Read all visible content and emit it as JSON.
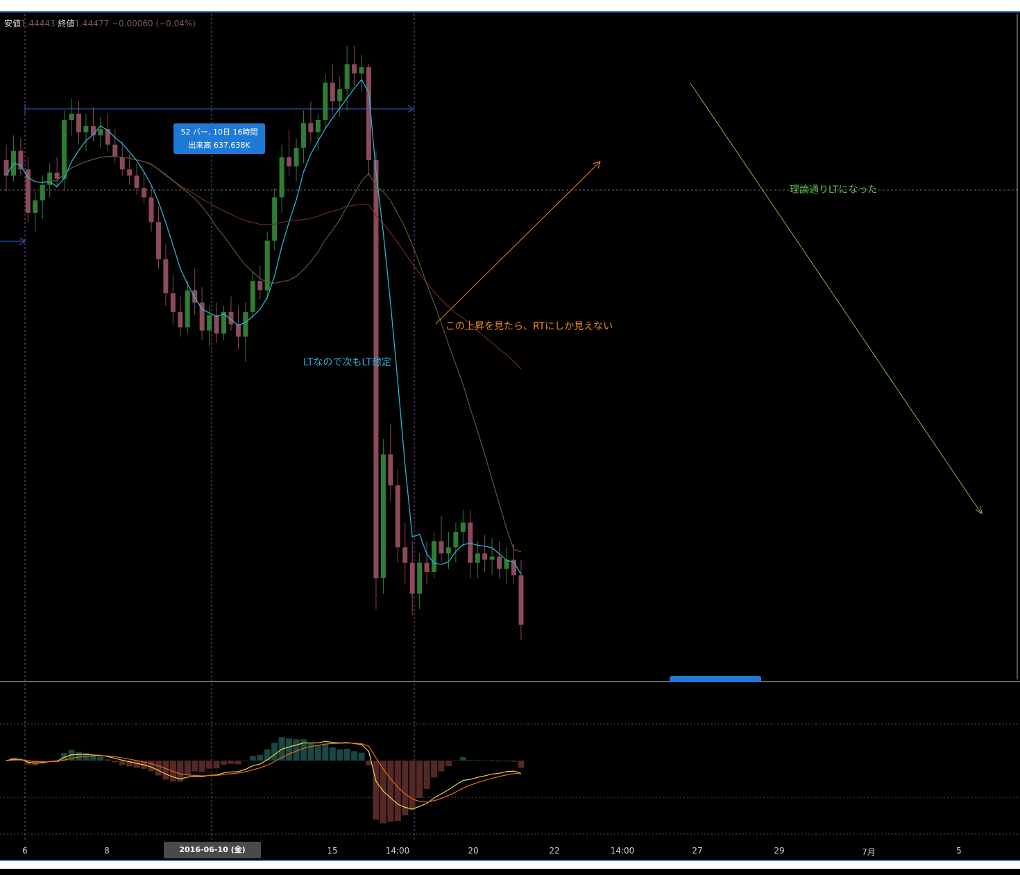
{
  "header": {
    "low_label": "安値",
    "low_value": "1.44443",
    "close_label": "終値",
    "close_value": "1.44477",
    "change": "−0.00060 (−0.04%)"
  },
  "measure_tag": {
    "line1": "52 バー, 10日 16時間",
    "line2": "出来高 637.638K"
  },
  "annotations": {
    "lt_expect": "LTなので次もLT想定",
    "rt_view": "この上昇を見たら、RTにしか見えない",
    "lt_result": "理論通りLTになった"
  },
  "x_axis": {
    "labels": [
      "6",
      "8",
      "15",
      "14:00",
      "20",
      "22",
      "14:00",
      "27",
      "29",
      "7月",
      "5"
    ],
    "crosshair_label": "2016-06-10 (金)　10:00"
  },
  "colors": {
    "up": "#2f7d32",
    "down": "#8c4a5a",
    "ma_fast": "#26b7d6",
    "ma_mid": "#5a5a32",
    "ma_slow": "#6a2a2a",
    "macd": "#e8d840",
    "signal": "#e86a1a",
    "lt_annotation": "#2ab0d8",
    "rt_annotation": "#ee8a20",
    "result_annotation": "#5fb84a"
  },
  "chart_data": {
    "type": "candlestick",
    "symbol_note": "",
    "candles": [
      [
        1.4475,
        1.448,
        1.4465,
        1.447
      ],
      [
        1.447,
        1.4483,
        1.4468,
        1.4478
      ],
      [
        1.4478,
        1.4482,
        1.447,
        1.4472
      ],
      [
        1.4472,
        1.4476,
        1.4455,
        1.4458
      ],
      [
        1.4458,
        1.4465,
        1.4452,
        1.4462
      ],
      [
        1.4462,
        1.447,
        1.4456,
        1.4467
      ],
      [
        1.4467,
        1.4474,
        1.4463,
        1.4471
      ],
      [
        1.4471,
        1.4476,
        1.4466,
        1.4469
      ],
      [
        1.4469,
        1.4491,
        1.4465,
        1.4488
      ],
      [
        1.4488,
        1.4495,
        1.4483,
        1.449
      ],
      [
        1.449,
        1.4494,
        1.448,
        1.4484
      ],
      [
        1.4484,
        1.449,
        1.4478,
        1.4486
      ],
      [
        1.4486,
        1.4492,
        1.4481,
        1.4483
      ],
      [
        1.4483,
        1.4489,
        1.4479,
        1.4485
      ],
      [
        1.4485,
        1.449,
        1.4478,
        1.448
      ],
      [
        1.448,
        1.4485,
        1.4474,
        1.4476
      ],
      [
        1.4476,
        1.4481,
        1.447,
        1.4472
      ],
      [
        1.4472,
        1.4477,
        1.4467,
        1.447
      ],
      [
        1.447,
        1.4474,
        1.4464,
        1.4466
      ],
      [
        1.4466,
        1.4471,
        1.4461,
        1.4463
      ],
      [
        1.4463,
        1.4467,
        1.4452,
        1.4455
      ],
      [
        1.4455,
        1.446,
        1.444,
        1.4443
      ],
      [
        1.4443,
        1.4448,
        1.4428,
        1.4432
      ],
      [
        1.4432,
        1.4438,
        1.4422,
        1.4426
      ],
      [
        1.4426,
        1.4431,
        1.4418,
        1.4421
      ],
      [
        1.4421,
        1.4436,
        1.4419,
        1.4433
      ],
      [
        1.4433,
        1.444,
        1.4425,
        1.4429
      ],
      [
        1.4429,
        1.4434,
        1.4417,
        1.442
      ],
      [
        1.442,
        1.4428,
        1.4415,
        1.4425
      ],
      [
        1.4425,
        1.4429,
        1.4416,
        1.4419
      ],
      [
        1.4419,
        1.4428,
        1.4417,
        1.4426
      ],
      [
        1.4426,
        1.4431,
        1.442,
        1.4422
      ],
      [
        1.4422,
        1.4428,
        1.4414,
        1.4418
      ],
      [
        1.4418,
        1.4429,
        1.441,
        1.4426
      ],
      [
        1.4426,
        1.4439,
        1.4424,
        1.4436
      ],
      [
        1.4436,
        1.4441,
        1.443,
        1.4433
      ],
      [
        1.4433,
        1.4452,
        1.443,
        1.4449
      ],
      [
        1.4449,
        1.4466,
        1.4446,
        1.4463
      ],
      [
        1.4463,
        1.448,
        1.4458,
        1.4476
      ],
      [
        1.4476,
        1.4485,
        1.447,
        1.4473
      ],
      [
        1.4473,
        1.4482,
        1.4468,
        1.4479
      ],
      [
        1.4479,
        1.4491,
        1.4474,
        1.4487
      ],
      [
        1.4487,
        1.4494,
        1.4481,
        1.4484
      ],
      [
        1.4484,
        1.449,
        1.4478,
        1.4488
      ],
      [
        1.4488,
        1.4503,
        1.4485,
        1.45
      ],
      [
        1.45,
        1.4506,
        1.449,
        1.4494
      ],
      [
        1.4494,
        1.4502,
        1.4489,
        1.4498
      ],
      [
        1.4498,
        1.4512,
        1.4491,
        1.4506
      ],
      [
        1.4506,
        1.4512,
        1.4499,
        1.4503
      ],
      [
        1.4503,
        1.4509,
        1.4497,
        1.4505
      ],
      [
        1.4505,
        1.4506,
        1.447,
        1.4475
      ],
      [
        1.4475,
        1.4478,
        1.433,
        1.434
      ],
      [
        1.434,
        1.4385,
        1.4335,
        1.438
      ],
      [
        1.438,
        1.439,
        1.4365,
        1.437
      ],
      [
        1.437,
        1.4375,
        1.4345,
        1.435
      ],
      [
        1.435,
        1.4358,
        1.4338,
        1.4345
      ],
      [
        1.4345,
        1.4352,
        1.4328,
        1.4335
      ],
      [
        1.4335,
        1.4348,
        1.433,
        1.4345
      ],
      [
        1.4345,
        1.4352,
        1.4338,
        1.4342
      ],
      [
        1.4342,
        1.4355,
        1.434,
        1.4352
      ],
      [
        1.4352,
        1.436,
        1.4345,
        1.4348
      ],
      [
        1.4348,
        1.4355,
        1.4343,
        1.435
      ],
      [
        1.435,
        1.4358,
        1.4345,
        1.4355
      ],
      [
        1.4355,
        1.4362,
        1.435,
        1.4358
      ],
      [
        1.4358,
        1.4362,
        1.434,
        1.4345
      ],
      [
        1.4345,
        1.4352,
        1.434,
        1.4348
      ],
      [
        1.4348,
        1.4354,
        1.4342,
        1.4346
      ],
      [
        1.4346,
        1.4353,
        1.4341,
        1.4347
      ],
      [
        1.4347,
        1.4352,
        1.434,
        1.4343
      ],
      [
        1.4343,
        1.435,
        1.4338,
        1.4346
      ],
      [
        1.4346,
        1.4351,
        1.4338,
        1.4341
      ],
      [
        1.4341,
        1.4346,
        1.432,
        1.4325
      ]
    ],
    "ylim": [
      1.431,
      1.452
    ],
    "legend": "none"
  }
}
